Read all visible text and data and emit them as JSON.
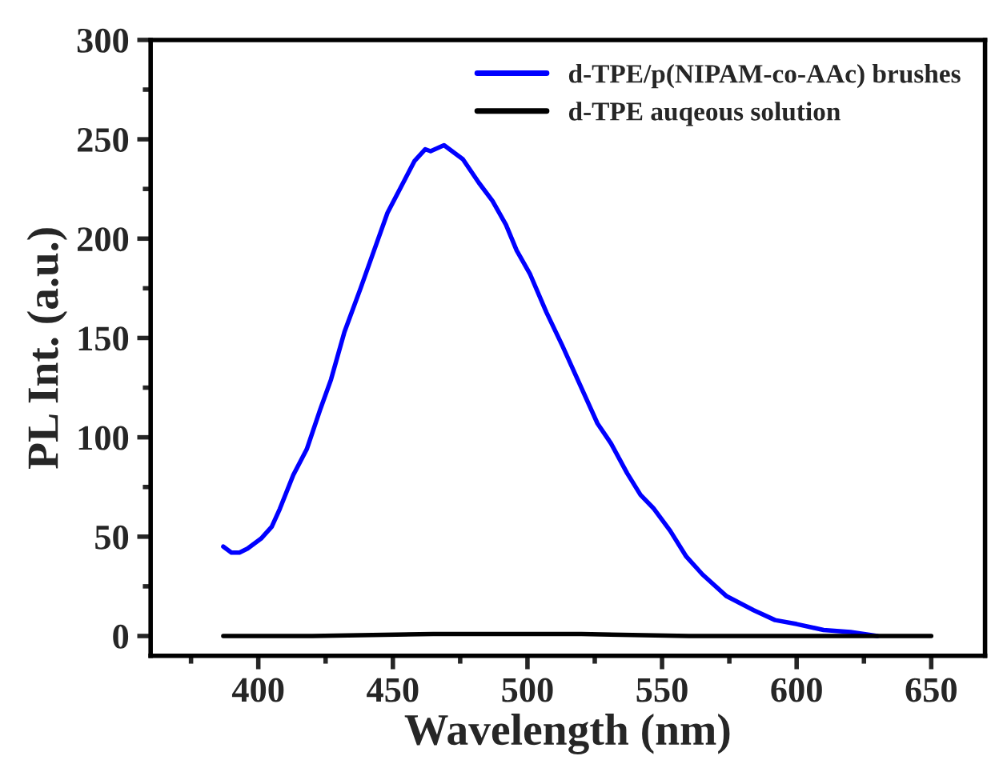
{
  "chart_data": {
    "type": "line",
    "xlabel": "Wavelength (nm)",
    "ylabel": "PL Int. (a.u.)",
    "xlim": [
      360,
      670
    ],
    "ylim": [
      -10,
      300
    ],
    "xticks": [
      400,
      450,
      500,
      550,
      600,
      650
    ],
    "yticks": [
      0,
      50,
      100,
      150,
      200,
      250,
      300
    ],
    "legend": "top right",
    "grid": false,
    "line_style": "solid",
    "marker": "none",
    "series": [
      {
        "name": "d-TPE/p(NIPAM-co-AAc) brushes",
        "color": "#0000ff",
        "x": [
          387,
          390,
          393,
          396,
          401,
          405,
          408,
          413,
          418,
          423,
          427,
          432,
          438,
          443,
          448,
          453,
          458,
          462,
          464,
          469,
          473,
          476,
          482,
          487,
          492,
          496,
          501,
          507,
          513,
          519,
          526,
          531,
          537,
          542,
          547,
          553,
          559,
          565,
          574,
          584,
          592,
          600,
          610,
          620,
          630
        ],
        "values": [
          45,
          42,
          42,
          44,
          49,
          55,
          64,
          81,
          94,
          114,
          129,
          153,
          175,
          194,
          213,
          226,
          239,
          245,
          244,
          247,
          243,
          240,
          228,
          219,
          207,
          194,
          182,
          163,
          146,
          128,
          107,
          97,
          82,
          71,
          64,
          53,
          40,
          31,
          20,
          13,
          8,
          6,
          3,
          2,
          0
        ]
      },
      {
        "name": "d-TPE auqeous solution",
        "color": "#000000",
        "x": [
          387,
          420,
          465,
          520,
          560,
          650
        ],
        "values": [
          0,
          0,
          1,
          1,
          0,
          0
        ]
      }
    ]
  }
}
